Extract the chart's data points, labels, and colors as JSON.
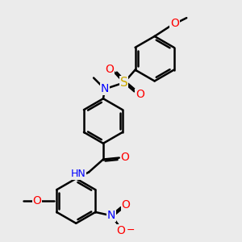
{
  "bg_color": "#ebebeb",
  "bond_color": "#000000",
  "bond_width": 1.8,
  "atom_colors": {
    "O": "#ff0000",
    "N": "#0000ff",
    "S": "#ccaa00",
    "H": "#808080",
    "C": "#000000"
  },
  "font_size": 9,
  "fig_size": [
    3.0,
    3.0
  ],
  "dpi": 100
}
